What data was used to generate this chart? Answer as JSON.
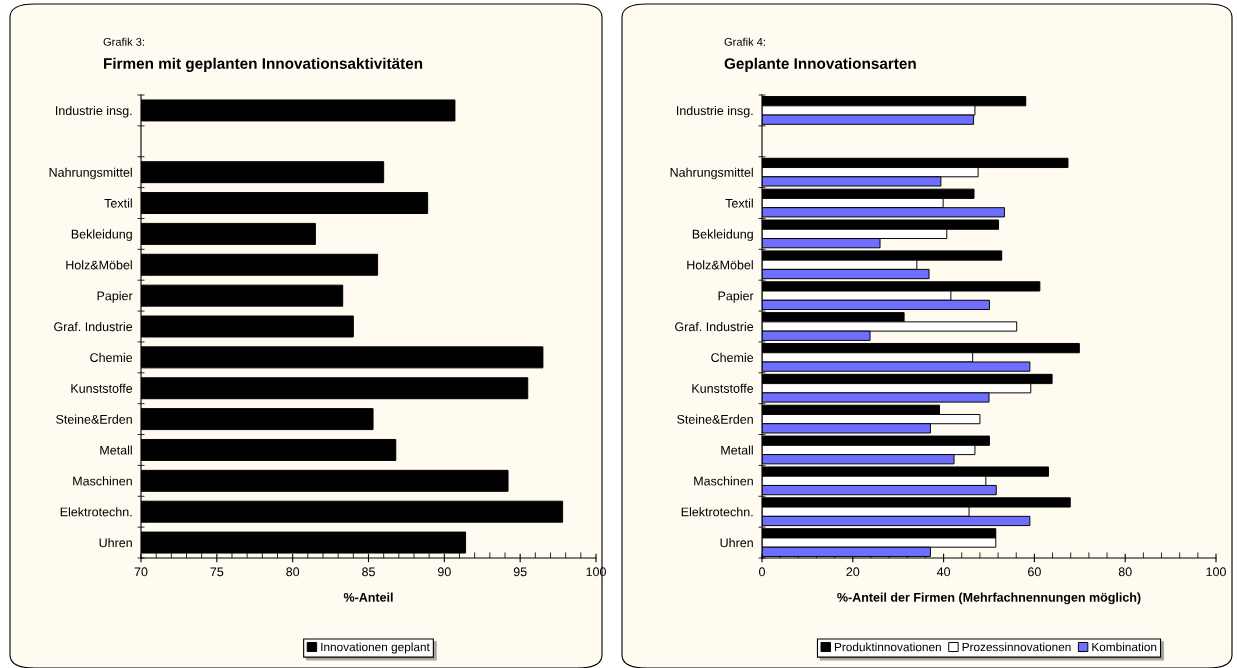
{
  "chart_data": [
    {
      "type": "bar",
      "orientation": "horizontal",
      "subtitle": "Grafik 3:",
      "title": "Firmen mit geplanten Innovationsaktivitäten",
      "xlabel": "%-Anteil",
      "categories": [
        "Industrie insg.",
        null,
        "Nahrungsmittel",
        "Textil",
        "Bekleidung",
        "Holz&Möbel",
        "Papier",
        "Graf. Industrie",
        "Chemie",
        "Kunststoffe",
        "Steine&Erden",
        "Metall",
        "Maschinen",
        "Elektrotechn.",
        "Uhren"
      ],
      "series": [
        {
          "name": "Innovationen geplant",
          "color": "#000000",
          "values": [
            90.7,
            null,
            86.0,
            88.9,
            81.5,
            85.6,
            83.3,
            84.0,
            96.5,
            95.5,
            85.3,
            86.8,
            94.2,
            97.8,
            91.4
          ]
        }
      ],
      "xlim": [
        70,
        100
      ],
      "xticks": [
        70,
        75,
        80,
        85,
        90,
        95,
        100
      ],
      "grid": false,
      "legend": "bottom"
    },
    {
      "type": "bar",
      "orientation": "horizontal",
      "subtitle": "Grafik 4:",
      "title": "Geplante Innovationsarten",
      "xlabel": "%-Anteil der Firmen (Mehrfachnennungen möglich)",
      "categories": [
        "Industrie insg.",
        null,
        "Nahrungsmittel",
        "Textil",
        "Bekleidung",
        "Holz&Möbel",
        "Papier",
        "Graf. Industrie",
        "Chemie",
        "Kunststoffe",
        "Steine&Erden",
        "Metall",
        "Maschinen",
        "Elektrotechn.",
        "Uhren"
      ],
      "series": [
        {
          "name": "Produktinnovationen",
          "color": "#000000",
          "values": [
            58.1,
            null,
            67.4,
            46.7,
            52.1,
            52.8,
            61.2,
            31.3,
            69.9,
            63.9,
            39.1,
            50.1,
            63.1,
            67.9,
            51.5
          ]
        },
        {
          "name": "Prozessinnovationen",
          "color": "#ffffff",
          "values": [
            46.9,
            null,
            47.6,
            39.9,
            40.7,
            34.1,
            41.6,
            56.1,
            46.4,
            59.2,
            48.0,
            46.9,
            49.3,
            45.6,
            51.5
          ]
        },
        {
          "name": "Kombination",
          "color": "#6f6fff",
          "values": [
            46.6,
            null,
            39.4,
            53.4,
            26.0,
            36.8,
            50.1,
            23.8,
            59.0,
            50.0,
            37.1,
            42.3,
            51.6,
            59.0,
            37.1
          ]
        }
      ],
      "xlim": [
        0,
        100
      ],
      "xticks": [
        0,
        20,
        40,
        60,
        80,
        100
      ],
      "grid": false,
      "legend": "bottom"
    }
  ]
}
